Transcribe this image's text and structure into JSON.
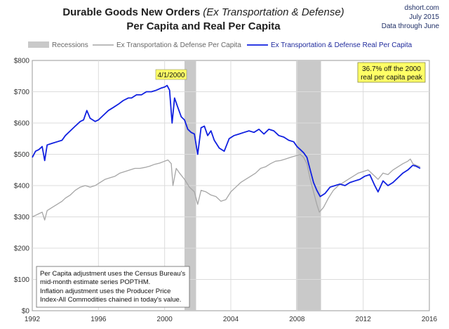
{
  "header": {
    "title_line1_main": "Durable Goods New Orders",
    "title_line1_paren": "(Ex Transportation & Defense)",
    "title_line2": "Per Capita and Real Per Capita",
    "source_site": "dshort.com",
    "source_date": "July 2015",
    "source_through": "Data through June"
  },
  "legend": {
    "recessions": "Recessions",
    "nominal": "Ex Transportation & Defense Per Capita",
    "real": "Ex Transportation & Defense Real Per Capita"
  },
  "annotations": {
    "peak_callout": "4/1/2000",
    "off_peak_line1": "36.7% off the 2000",
    "off_peak_line2": "real per capita peak",
    "note_lines": [
      "Per Capita adjustment uses the Census Bureau's",
      "mid-month estimate series POPTHM.",
      "Inflation adjustment uses the Producer Price",
      "Index-All Commodities chained in today's value."
    ]
  },
  "colors": {
    "real_series": "#1020e0",
    "nominal_series": "#a6a6a6",
    "recession_band": "#c9c9c9",
    "callout_fill": "#ffff66",
    "plot_background": "#ffffff",
    "grid": "#dcdcdc"
  },
  "chart_data": {
    "type": "line",
    "title": "Durable Goods New Orders (Ex Transportation & Defense) Per Capita and Real Per Capita",
    "xlim": [
      1992,
      2016
    ],
    "ylim": [
      0,
      800
    ],
    "grid": true,
    "legend_position": "top",
    "x_ticks": [
      "1992",
      "1996",
      "2000",
      "2004",
      "2008",
      "2012",
      "2016"
    ],
    "y_ticks": [
      "$0",
      "$100",
      "$200",
      "$300",
      "$400",
      "$500",
      "$600",
      "$700",
      "$800"
    ],
    "x_tick_values": [
      1992,
      1996,
      2000,
      2004,
      2008,
      2012,
      2016
    ],
    "y_tick_values": [
      0,
      100,
      200,
      300,
      400,
      500,
      600,
      700,
      800
    ],
    "recessions": [
      {
        "start": 2001.2,
        "end": 2001.9
      },
      {
        "start": 2007.95,
        "end": 2009.45
      }
    ],
    "series": [
      {
        "name": "Ex Transportation & Defense Real Per Capita",
        "points": [
          [
            1992.0,
            490
          ],
          [
            1992.2,
            510
          ],
          [
            1992.4,
            515
          ],
          [
            1992.6,
            525
          ],
          [
            1992.75,
            480
          ],
          [
            1992.9,
            530
          ],
          [
            1993.2,
            535
          ],
          [
            1993.5,
            540
          ],
          [
            1993.8,
            545
          ],
          [
            1994.0,
            560
          ],
          [
            1994.3,
            575
          ],
          [
            1994.6,
            590
          ],
          [
            1994.9,
            605
          ],
          [
            1995.1,
            610
          ],
          [
            1995.3,
            640
          ],
          [
            1995.5,
            615
          ],
          [
            1995.8,
            605
          ],
          [
            1996.0,
            610
          ],
          [
            1996.3,
            625
          ],
          [
            1996.6,
            640
          ],
          [
            1996.9,
            650
          ],
          [
            1997.2,
            660
          ],
          [
            1997.5,
            672
          ],
          [
            1997.8,
            680
          ],
          [
            1998.0,
            680
          ],
          [
            1998.3,
            690
          ],
          [
            1998.6,
            690
          ],
          [
            1998.9,
            700
          ],
          [
            1999.2,
            700
          ],
          [
            1999.5,
            705
          ],
          [
            1999.8,
            712
          ],
          [
            2000.0,
            715
          ],
          [
            2000.15,
            720
          ],
          [
            2000.3,
            705
          ],
          [
            2000.45,
            600
          ],
          [
            2000.6,
            680
          ],
          [
            2000.8,
            650
          ],
          [
            2001.0,
            620
          ],
          [
            2001.2,
            610
          ],
          [
            2001.4,
            580
          ],
          [
            2001.6,
            570
          ],
          [
            2001.8,
            565
          ],
          [
            2002.0,
            500
          ],
          [
            2002.2,
            585
          ],
          [
            2002.4,
            590
          ],
          [
            2002.6,
            560
          ],
          [
            2002.8,
            575
          ],
          [
            2003.0,
            545
          ],
          [
            2003.3,
            520
          ],
          [
            2003.6,
            510
          ],
          [
            2003.9,
            550
          ],
          [
            2004.2,
            560
          ],
          [
            2004.5,
            565
          ],
          [
            2004.8,
            570
          ],
          [
            2005.1,
            575
          ],
          [
            2005.4,
            570
          ],
          [
            2005.7,
            580
          ],
          [
            2006.0,
            565
          ],
          [
            2006.3,
            580
          ],
          [
            2006.6,
            575
          ],
          [
            2006.9,
            560
          ],
          [
            2007.2,
            555
          ],
          [
            2007.5,
            545
          ],
          [
            2007.8,
            540
          ],
          [
            2008.0,
            525
          ],
          [
            2008.2,
            515
          ],
          [
            2008.4,
            505
          ],
          [
            2008.6,
            490
          ],
          [
            2008.8,
            450
          ],
          [
            2009.0,
            410
          ],
          [
            2009.2,
            385
          ],
          [
            2009.4,
            365
          ],
          [
            2009.7,
            375
          ],
          [
            2010.0,
            395
          ],
          [
            2010.3,
            400
          ],
          [
            2010.6,
            405
          ],
          [
            2010.9,
            400
          ],
          [
            2011.2,
            410
          ],
          [
            2011.5,
            415
          ],
          [
            2011.8,
            420
          ],
          [
            2012.1,
            430
          ],
          [
            2012.4,
            435
          ],
          [
            2012.7,
            400
          ],
          [
            2012.9,
            380
          ],
          [
            2013.2,
            415
          ],
          [
            2013.5,
            400
          ],
          [
            2013.8,
            410
          ],
          [
            2014.1,
            425
          ],
          [
            2014.4,
            440
          ],
          [
            2014.7,
            450
          ],
          [
            2015.0,
            465
          ],
          [
            2015.2,
            462
          ],
          [
            2015.45,
            455
          ]
        ]
      },
      {
        "name": "Ex Transportation & Defense Per Capita",
        "points": [
          [
            1992.0,
            300
          ],
          [
            1992.2,
            305
          ],
          [
            1992.4,
            310
          ],
          [
            1992.6,
            315
          ],
          [
            1992.75,
            290
          ],
          [
            1992.9,
            320
          ],
          [
            1993.2,
            330
          ],
          [
            1993.5,
            340
          ],
          [
            1993.8,
            350
          ],
          [
            1994.0,
            360
          ],
          [
            1994.3,
            370
          ],
          [
            1994.6,
            385
          ],
          [
            1994.9,
            395
          ],
          [
            1995.2,
            400
          ],
          [
            1995.5,
            395
          ],
          [
            1995.8,
            400
          ],
          [
            1996.1,
            410
          ],
          [
            1996.4,
            420
          ],
          [
            1996.7,
            425
          ],
          [
            1997.0,
            430
          ],
          [
            1997.3,
            440
          ],
          [
            1997.6,
            445
          ],
          [
            1997.9,
            450
          ],
          [
            1998.2,
            455
          ],
          [
            1998.5,
            455
          ],
          [
            1998.8,
            458
          ],
          [
            1999.1,
            462
          ],
          [
            1999.4,
            468
          ],
          [
            1999.7,
            472
          ],
          [
            2000.0,
            478
          ],
          [
            2000.2,
            482
          ],
          [
            2000.4,
            470
          ],
          [
            2000.5,
            400
          ],
          [
            2000.7,
            455
          ],
          [
            2000.9,
            440
          ],
          [
            2001.2,
            420
          ],
          [
            2001.5,
            395
          ],
          [
            2001.8,
            380
          ],
          [
            2002.0,
            340
          ],
          [
            2002.2,
            385
          ],
          [
            2002.5,
            380
          ],
          [
            2002.8,
            370
          ],
          [
            2003.1,
            365
          ],
          [
            2003.4,
            350
          ],
          [
            2003.7,
            355
          ],
          [
            2004.0,
            380
          ],
          [
            2004.3,
            395
          ],
          [
            2004.6,
            410
          ],
          [
            2004.9,
            420
          ],
          [
            2005.2,
            430
          ],
          [
            2005.5,
            440
          ],
          [
            2005.8,
            455
          ],
          [
            2006.1,
            460
          ],
          [
            2006.4,
            470
          ],
          [
            2006.7,
            478
          ],
          [
            2007.0,
            480
          ],
          [
            2007.3,
            485
          ],
          [
            2007.6,
            490
          ],
          [
            2007.9,
            495
          ],
          [
            2008.2,
            500
          ],
          [
            2008.4,
            490
          ],
          [
            2008.6,
            470
          ],
          [
            2008.8,
            420
          ],
          [
            2009.0,
            380
          ],
          [
            2009.2,
            340
          ],
          [
            2009.35,
            315
          ],
          [
            2009.6,
            330
          ],
          [
            2009.9,
            360
          ],
          [
            2010.2,
            385
          ],
          [
            2010.5,
            400
          ],
          [
            2010.8,
            410
          ],
          [
            2011.1,
            420
          ],
          [
            2011.4,
            430
          ],
          [
            2011.7,
            440
          ],
          [
            2012.0,
            445
          ],
          [
            2012.3,
            450
          ],
          [
            2012.6,
            435
          ],
          [
            2012.9,
            420
          ],
          [
            2013.2,
            440
          ],
          [
            2013.5,
            435
          ],
          [
            2013.8,
            450
          ],
          [
            2014.1,
            460
          ],
          [
            2014.4,
            470
          ],
          [
            2014.7,
            478
          ],
          [
            2014.85,
            485
          ],
          [
            2015.0,
            470
          ],
          [
            2015.2,
            465
          ],
          [
            2015.45,
            460
          ]
        ]
      }
    ]
  }
}
